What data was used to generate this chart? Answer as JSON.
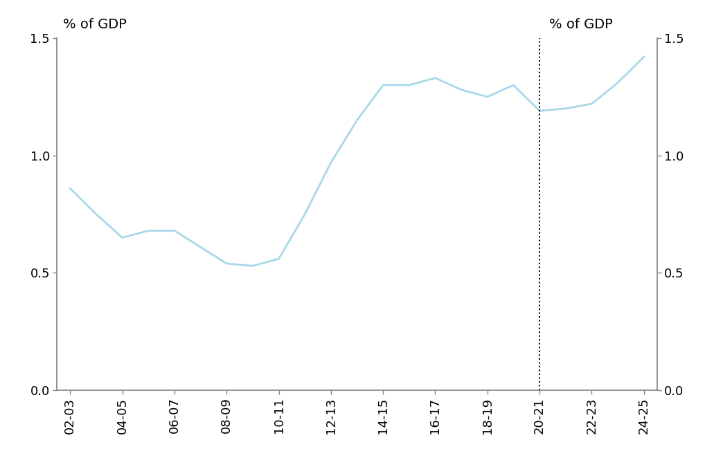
{
  "x_labels": [
    "02-03",
    "04-05",
    "06-07",
    "08-09",
    "10-11",
    "12-13",
    "14-15",
    "16-17",
    "18-19",
    "20-21",
    "22-23",
    "24-25"
  ],
  "x_tick_positions": [
    0,
    2,
    4,
    6,
    8,
    10,
    12,
    14,
    16,
    18,
    20,
    22
  ],
  "x_pts": [
    0,
    1,
    2,
    3,
    4,
    5,
    6,
    7,
    8,
    9,
    10,
    11,
    12,
    13,
    14,
    15,
    16,
    17,
    18,
    19,
    20,
    21,
    22
  ],
  "y_pts": [
    0.86,
    0.75,
    0.65,
    0.68,
    0.68,
    0.61,
    0.54,
    0.53,
    0.56,
    0.75,
    0.97,
    1.15,
    1.3,
    1.3,
    1.33,
    1.28,
    1.25,
    1.3,
    1.19,
    1.2,
    1.22,
    1.31,
    1.42
  ],
  "line_color": "#a8d8e8",
  "line_width": 2.0,
  "vline_x": 18,
  "ylabel_left": "% of GDP",
  "ylabel_right": "% of GDP",
  "ylim": [
    0.0,
    1.5
  ],
  "yticks": [
    0.0,
    0.5,
    1.0,
    1.5
  ],
  "background_color": "#ffffff",
  "axis_color": "#808080",
  "tick_color": "#808080",
  "label_fontsize": 14,
  "tick_fontsize": 13
}
